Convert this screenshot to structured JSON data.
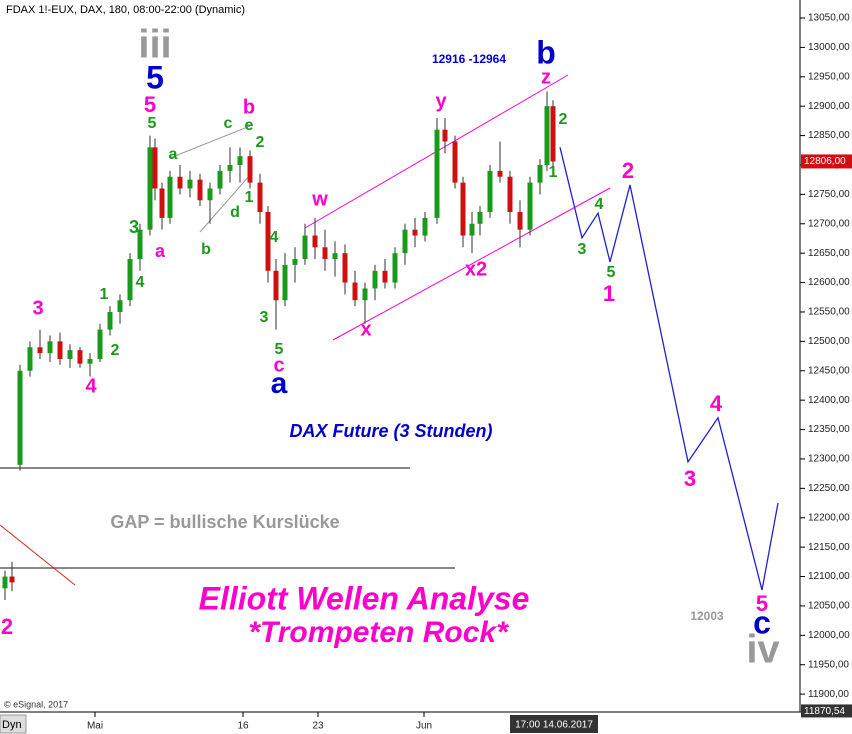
{
  "chart_data": {
    "type": "candlestick",
    "title": "FDAX 1!-EUX, DAX, 180, 08:00-22:00 (Dynamic)",
    "x": [
      1.25,
      3,
      5,
      7.5,
      10,
      12.5,
      15,
      17.5,
      20,
      22.5,
      25,
      27.5,
      30,
      32.5,
      35,
      37.5,
      38.75,
      40.5,
      42.5,
      45,
      47.5,
      50,
      52.5,
      55,
      57.5,
      60,
      62.5,
      65,
      67,
      69,
      71.25,
      73.75,
      76.25,
      78.75,
      81.25,
      83.75,
      86.25,
      88.75,
      91.25,
      93.75,
      96.25,
      98.75,
      101.25,
      103.75,
      106.25,
      109.25,
      111.25,
      113.75,
      115.75,
      118,
      120,
      122.5,
      125,
      127.5,
      130,
      132.5,
      135,
      136.75,
      138.25
    ],
    "open": [
      12080,
      12100,
      12290,
      12450,
      12490,
      12480,
      12500,
      12470,
      12485,
      12462,
      12470,
      12520,
      12550,
      12570,
      12640,
      12690,
      12830,
      12760,
      12710,
      12780,
      12760,
      12775,
      12740,
      12760,
      12790,
      12800,
      12815,
      12770,
      12720,
      12620,
      12570,
      12630,
      12640,
      12680,
      12660,
      12640,
      12650,
      12600,
      12570,
      12590,
      12620,
      12600,
      12650,
      12690,
      12680,
      12710,
      12860,
      12840,
      12770,
      12680,
      12700,
      12720,
      12790,
      12780,
      12720,
      12690,
      12770,
      12800,
      12900
    ],
    "high": [
      12110,
      12125,
      12460,
      12500,
      12520,
      12510,
      12515,
      12495,
      12490,
      12480,
      12530,
      12560,
      12580,
      12650,
      12700,
      12850,
      12845,
      12770,
      12790,
      12800,
      12790,
      12785,
      12770,
      12800,
      12830,
      12830,
      12825,
      12785,
      12730,
      12640,
      12650,
      12660,
      12700,
      12710,
      12690,
      12670,
      12665,
      12620,
      12600,
      12630,
      12640,
      12660,
      12700,
      12710,
      12720,
      12880,
      12880,
      12850,
      12780,
      12720,
      12730,
      12800,
      12840,
      12790,
      12740,
      12780,
      12810,
      12925,
      12910
    ],
    "low": [
      12060,
      12075,
      12280,
      12440,
      12470,
      12465,
      12460,
      12455,
      12455,
      12440,
      12465,
      12510,
      12530,
      12560,
      12620,
      12680,
      12740,
      12690,
      12700,
      12750,
      12745,
      12730,
      12700,
      12750,
      12770,
      12770,
      12760,
      12700,
      12600,
      12520,
      12560,
      12600,
      12630,
      12640,
      12620,
      12610,
      12580,
      12560,
      12530,
      12570,
      12590,
      12590,
      12630,
      12660,
      12670,
      12700,
      12820,
      12760,
      12660,
      12650,
      12680,
      12710,
      12770,
      12700,
      12660,
      12680,
      12750,
      12790,
      12790
    ],
    "close": [
      12100,
      12090,
      12450,
      12490,
      12480,
      12500,
      12470,
      12485,
      12462,
      12470,
      12520,
      12550,
      12570,
      12640,
      12690,
      12830,
      12760,
      12710,
      12780,
      12760,
      12775,
      12740,
      12760,
      12790,
      12800,
      12815,
      12770,
      12720,
      12620,
      12570,
      12630,
      12640,
      12680,
      12660,
      12640,
      12650,
      12600,
      12570,
      12590,
      12620,
      12600,
      12650,
      12690,
      12680,
      12710,
      12860,
      12840,
      12770,
      12680,
      12700,
      12720,
      12790,
      12780,
      12720,
      12690,
      12770,
      12800,
      12900,
      12806
    ],
    "up_color": "#1a9a1a",
    "down_color": "#d01010",
    "xlim": [
      0,
      200
    ],
    "ylim": [
      11869.6,
      13080.6
    ],
    "xticks": [
      {
        "value": 23.75,
        "label": "Mai"
      },
      {
        "value": 60.75,
        "label": "16"
      },
      {
        "value": 79.5,
        "label": "23"
      },
      {
        "value": 106,
        "label": "Jun"
      }
    ],
    "yticks": [
      {
        "value": 11900,
        "label": "11900,00"
      },
      {
        "value": 11950,
        "label": "11950,00"
      },
      {
        "value": 12000,
        "label": "12000,00"
      },
      {
        "value": 12050,
        "label": "12050,00"
      },
      {
        "value": 12100,
        "label": "12100,00"
      },
      {
        "value": 12150,
        "label": "12150,00"
      },
      {
        "value": 12200,
        "label": "12200,00"
      },
      {
        "value": 12250,
        "label": "12250,00"
      },
      {
        "value": 12300,
        "label": "12300,00"
      },
      {
        "value": 12350,
        "label": "12350,00"
      },
      {
        "value": 12400,
        "label": "12400,00"
      },
      {
        "value": 12450,
        "label": "12450,00"
      },
      {
        "value": 12500,
        "label": "12500,00"
      },
      {
        "value": 12550,
        "label": "12550,00"
      },
      {
        "value": 12600,
        "label": "12600,00"
      },
      {
        "value": 12650,
        "label": "12650,00"
      },
      {
        "value": 12700,
        "label": "12700,00"
      },
      {
        "value": 12750,
        "label": "12750,00"
      },
      {
        "value": 12800,
        "label": "12800,00"
      },
      {
        "value": 12850,
        "label": "12850,00"
      },
      {
        "value": 12900,
        "label": "12900,00"
      },
      {
        "value": 12950,
        "label": "12950,00"
      },
      {
        "value": 13000,
        "label": "13000,00"
      },
      {
        "value": 13050,
        "label": "13050,00"
      }
    ],
    "last_price": {
      "value": 12806,
      "label": "12806,00"
    },
    "low_label": {
      "value": 11870.54,
      "label": "11870,54"
    },
    "crosshair_label": "17:00 14.06.2017",
    "forecast": {
      "color": "#2020d0",
      "x": [
        140,
        145.5,
        149.5,
        152.5,
        157.5,
        172,
        179.5,
        190.5,
        194.5
      ],
      "values": [
        12830,
        12676,
        12718,
        12635,
        12766,
        12295,
        12370,
        12077,
        12225
      ]
    },
    "wave_labels": [
      {
        "text": "iii",
        "color": "#999999"
      },
      {
        "text": "5",
        "color": "#0000cc"
      },
      {
        "text": "5",
        "color": "#ff00cc"
      },
      {
        "text": "5",
        "color": "#1a9a1a"
      },
      {
        "text": "a",
        "color": "#1a9a1a"
      },
      {
        "text": "c",
        "color": "#1a9a1a"
      },
      {
        "text": "e",
        "color": "#1a9a1a"
      },
      {
        "text": "b",
        "color": "#ff00cc"
      },
      {
        "text": "2",
        "color": "#1a9a1a"
      },
      {
        "text": "1",
        "color": "#1a9a1a"
      },
      {
        "text": "d",
        "color": "#1a9a1a"
      },
      {
        "text": "b",
        "color": "#1a9a1a"
      },
      {
        "text": "a",
        "color": "#ff00cc"
      },
      {
        "text": "3",
        "color": "#1a9a1a"
      },
      {
        "text": "4",
        "color": "#1a9a1a"
      },
      {
        "text": "1",
        "color": "#1a9a1a"
      },
      {
        "text": "3",
        "color": "#ff00cc"
      },
      {
        "text": "2",
        "color": "#1a9a1a"
      },
      {
        "text": "4",
        "color": "#ff00cc"
      },
      {
        "text": "4",
        "color": "#1a9a1a"
      },
      {
        "text": "3",
        "color": "#1a9a1a"
      },
      {
        "text": "5",
        "color": "#1a9a1a"
      },
      {
        "text": "c",
        "color": "#ff00cc"
      },
      {
        "text": "a",
        "color": "#0000cc"
      },
      {
        "text": "w",
        "color": "#ff00cc"
      },
      {
        "text": "x",
        "color": "#ff00cc"
      },
      {
        "text": "y",
        "color": "#ff00cc"
      },
      {
        "text": "x2",
        "color": "#ff00cc"
      },
      {
        "text": "z",
        "color": "#ff00cc"
      },
      {
        "text": "b",
        "color": "#0000cc"
      },
      {
        "text": "2",
        "color": "#1a9a1a"
      },
      {
        "text": "1",
        "color": "#1a9a1a"
      },
      {
        "text": "4",
        "color": "#1a9a1a"
      },
      {
        "text": "3",
        "color": "#1a9a1a"
      },
      {
        "text": "5",
        "color": "#1a9a1a"
      },
      {
        "text": "1",
        "color": "#ff00cc"
      },
      {
        "text": "2",
        "color": "#ff00cc"
      },
      {
        "text": "4",
        "color": "#ff00cc"
      },
      {
        "text": "3",
        "color": "#ff00cc"
      },
      {
        "text": "5",
        "color": "#ff00cc"
      },
      {
        "text": "c",
        "color": "#0000cc"
      },
      {
        "text": "iv",
        "color": "#999999"
      },
      {
        "text": "2",
        "color": "#ff00cc"
      }
    ],
    "range_note": "12916 -12964",
    "subtitle": "DAX Future (3 Stunden)",
    "gap_note": "GAP = bullische Kurslücke",
    "headline": "Elliott Wellen Analyse",
    "headline2": "*Trompeten Rock*",
    "target_note": "12003",
    "source": "© eSignal, 2017",
    "mode": "Dyn"
  }
}
